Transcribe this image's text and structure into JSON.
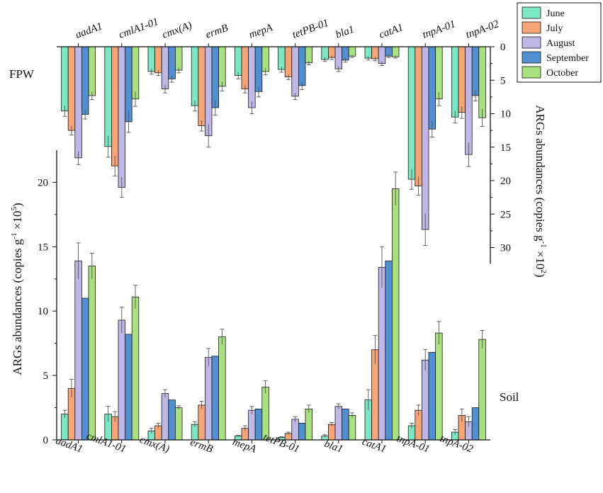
{
  "colors": {
    "June": "#7ae8c4",
    "July": "#f7a477",
    "August": "#bfb8e6",
    "September": "#4f8fd2",
    "October": "#a9e17f",
    "axis": "#111111",
    "error": "#555555"
  },
  "chart_data": [
    {
      "type": "bar",
      "panel": "top",
      "side_label": "FPW",
      "orientation": "downward (inverted y-axis)",
      "ylabel": "ARGs abundances (copies g-1 ×10²)",
      "ylabel_main": "ARGs abundances (copies g",
      "ylabel_sup1": "-1",
      "ylabel_mid": " ×10",
      "ylabel_sup2": "2",
      "ylabel_end": ")",
      "ylim": [
        0,
        32
      ],
      "yticks": [
        0,
        5,
        10,
        15,
        20,
        25,
        30
      ],
      "categories": [
        "aadA1",
        "cmlA1-01",
        "cmx(A)",
        "ermB",
        "mepA",
        "tetPB-01",
        "bla1",
        "catA1",
        "tnpA-01",
        "tnpA-02"
      ],
      "series": [
        {
          "name": "June",
          "values": [
            9.6,
            14.9,
            3.7,
            8.8,
            4.3,
            3.4,
            1.9,
            1.7,
            19.8,
            10.5
          ],
          "errors": [
            0.8,
            1.6,
            0.4,
            0.8,
            0.5,
            0.4,
            0.3,
            0.3,
            1.5,
            0.9
          ]
        },
        {
          "name": "July",
          "values": [
            12.5,
            17.8,
            3.9,
            11.8,
            6.3,
            4.5,
            1.6,
            1.8,
            20.8,
            9.8
          ],
          "errors": [
            0.7,
            1.5,
            0.4,
            0.8,
            0.6,
            0.4,
            0.3,
            0.3,
            1.4,
            0.9
          ]
        },
        {
          "name": "August",
          "values": [
            16.6,
            21.0,
            6.3,
            13.3,
            9.1,
            7.4,
            3.3,
            2.5,
            27.3,
            16.1
          ],
          "errors": [
            1.0,
            1.5,
            0.6,
            1.7,
            0.9,
            0.5,
            0.4,
            0.3,
            2.4,
            1.8
          ]
        },
        {
          "name": "September",
          "values": [
            10.1,
            11.2,
            4.8,
            9.1,
            6.7,
            5.8,
            2.0,
            1.4,
            12.3,
            7.3
          ],
          "errors": [
            0.7,
            1.6,
            0.5,
            1.1,
            0.8,
            0.6,
            0.3,
            0.2,
            1.2,
            0.8
          ]
        },
        {
          "name": "October",
          "values": [
            7.3,
            7.8,
            3.5,
            5.9,
            3.7,
            2.4,
            1.4,
            1.5,
            7.8,
            10.6
          ],
          "errors": [
            0.6,
            1.1,
            0.4,
            0.7,
            0.5,
            0.3,
            0.2,
            0.2,
            1.0,
            1.3
          ]
        }
      ]
    },
    {
      "type": "bar",
      "panel": "bottom",
      "side_label": "Soil",
      "ylabel": "ARGs abundances (copies g-1 ×10⁵)",
      "ylabel_main": "ARGs abundances (copies g",
      "ylabel_sup1": "-1",
      "ylabel_mid": " ×10",
      "ylabel_sup2": "5",
      "ylabel_end": ")",
      "ylim": [
        0,
        22.5
      ],
      "yticks": [
        0,
        5,
        10,
        15,
        20
      ],
      "categories": [
        "aadA1",
        "cmlA1-01",
        "cmx(A)",
        "ermB",
        "mepA",
        "tetPB-01",
        "bla1",
        "catA1",
        "tnpA-01",
        "tnpA-02"
      ],
      "series": [
        {
          "name": "June",
          "values": [
            2.0,
            2.0,
            0.7,
            1.2,
            0.3,
            0.2,
            0.3,
            3.1,
            1.1,
            0.6
          ],
          "errors": [
            0.3,
            0.6,
            0.2,
            0.2,
            0.05,
            0.05,
            0.1,
            0.8,
            0.2,
            0.2
          ]
        },
        {
          "name": "July",
          "values": [
            4.0,
            1.8,
            1.1,
            2.7,
            0.9,
            0.5,
            1.2,
            7.0,
            2.3,
            1.9
          ],
          "errors": [
            0.7,
            0.4,
            0.2,
            0.3,
            0.2,
            0.1,
            0.15,
            1.1,
            0.4,
            0.5
          ]
        },
        {
          "name": "August",
          "values": [
            13.9,
            9.3,
            3.6,
            6.4,
            2.3,
            1.6,
            2.6,
            13.4,
            6.2,
            1.4
          ],
          "errors": [
            1.4,
            1.0,
            0.3,
            0.7,
            0.3,
            0.2,
            0.2,
            1.6,
            0.8,
            0.4
          ]
        },
        {
          "name": "September",
          "values": [
            11.0,
            8.2,
            3.1,
            6.5,
            2.4,
            1.3,
            2.4,
            13.9,
            6.8,
            2.5
          ]
        },
        {
          "name": "October",
          "values": [
            13.5,
            11.1,
            2.5,
            8.0,
            4.1,
            2.4,
            1.9,
            19.5,
            8.3,
            7.8
          ],
          "errors": [
            1.0,
            0.9,
            0.15,
            0.6,
            0.5,
            0.3,
            0.2,
            1.3,
            0.9,
            0.7
          ]
        }
      ]
    }
  ]
}
